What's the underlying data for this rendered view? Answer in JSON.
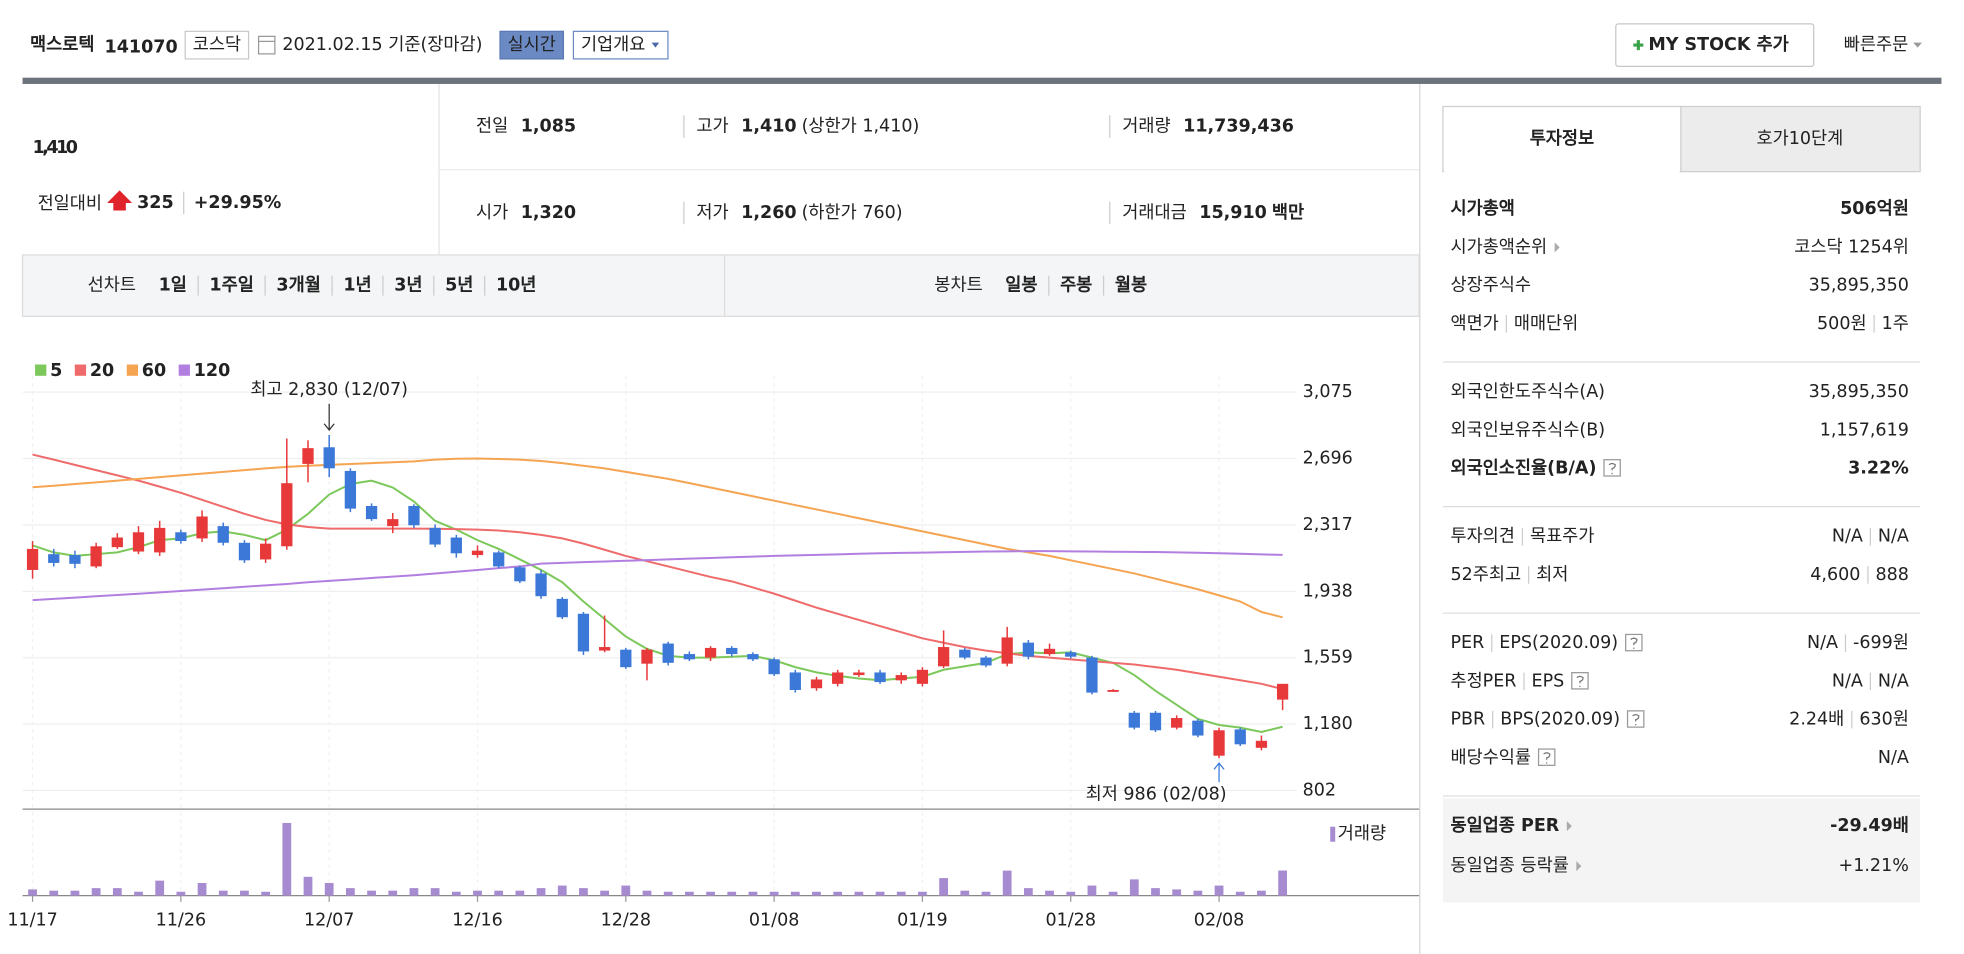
{
  "header": {
    "name": "맥스로텍",
    "code": "141070",
    "market": "코스닥",
    "date": "2021.02.15 기준(장마감)",
    "realtime": "실시간",
    "company_info": "기업개요",
    "my_stock": "MY STOCK 추가",
    "quick_order": "빠른주문"
  },
  "price": {
    "current": "1,410",
    "change_label": "전일대비",
    "change": "325",
    "change_pct": "+29.95%",
    "color": "#e0222b"
  },
  "quote": [
    {
      "label": "전일",
      "value": "1,085"
    },
    {
      "label": "고가",
      "value": "1,410",
      "note": "(상한가 1,410)",
      "color": "#e0222b"
    },
    {
      "label": "거래량",
      "value": "11,739,436"
    },
    {
      "label": "시가",
      "value": "1,320",
      "color": "#e0222b"
    },
    {
      "label": "저가",
      "value": "1,260",
      "note": "(하한가 760)",
      "color": "#e0222b"
    },
    {
      "label": "거래대금",
      "value": "15,910",
      "unit": "백만"
    }
  ],
  "tabs": {
    "line_label": "선차트",
    "line_periods": [
      "1일",
      "1주일",
      "3개월",
      "1년",
      "3년",
      "5년",
      "10년"
    ],
    "candle_label": "봉차트",
    "candle_periods": [
      "일봉",
      "주봉",
      "월봉"
    ],
    "candle_selected": 0
  },
  "chart_data": {
    "type": "candlestick",
    "categories": [
      "11/17",
      null,
      null,
      null,
      null,
      null,
      null,
      "11/26",
      null,
      null,
      null,
      null,
      null,
      null,
      "12/07",
      null,
      null,
      null,
      null,
      null,
      null,
      "12/16",
      null,
      null,
      null,
      null,
      null,
      null,
      "12/28",
      null,
      null,
      null,
      null,
      null,
      null,
      "01/08",
      null,
      null,
      null,
      null,
      null,
      null,
      "01/19",
      null,
      null,
      null,
      null,
      null,
      null,
      "01/28",
      null,
      null,
      null,
      null,
      null,
      null,
      "02/08",
      null,
      null,
      null
    ],
    "open": [
      2060,
      2150,
      2145,
      2080,
      2190,
      2165,
      2160,
      2275,
      2240,
      2310,
      2215,
      2120,
      2195,
      2665,
      2760,
      2625,
      2425,
      2310,
      2425,
      2300,
      2245,
      2145,
      2160,
      2075,
      2040,
      1895,
      1810,
      1600,
      1605,
      1525,
      1640,
      1580,
      1560,
      1615,
      1580,
      1550,
      1475,
      1385,
      1410,
      1460,
      1475,
      1430,
      1410,
      1510,
      1605,
      1560,
      1525,
      1645,
      1580,
      1590,
      1560,
      1370,
      1245,
      1245,
      1160,
      1200,
      1000,
      1150,
      1045,
      1320
    ],
    "high": [
      2225,
      2180,
      2170,
      2215,
      2270,
      2310,
      2340,
      2290,
      2400,
      2330,
      2230,
      2240,
      2810,
      2800,
      2830,
      2640,
      2440,
      2385,
      2435,
      2320,
      2260,
      2200,
      2170,
      2085,
      2060,
      1905,
      1820,
      1800,
      1615,
      1615,
      1650,
      1595,
      1625,
      1625,
      1590,
      1560,
      1490,
      1450,
      1490,
      1490,
      1490,
      1475,
      1505,
      1715,
      1615,
      1570,
      1735,
      1660,
      1640,
      1600,
      1570,
      1380,
      1255,
      1255,
      1230,
      1210,
      1160,
      1160,
      1115,
      1410
    ],
    "low": [
      2010,
      2080,
      2070,
      2070,
      2180,
      2150,
      2140,
      2210,
      2220,
      2200,
      2100,
      2100,
      2175,
      2560,
      2590,
      2390,
      2340,
      2270,
      2300,
      2190,
      2130,
      2130,
      2070,
      1985,
      1895,
      1780,
      1575,
      1590,
      1495,
      1430,
      1515,
      1540,
      1540,
      1565,
      1540,
      1455,
      1360,
      1370,
      1395,
      1450,
      1410,
      1410,
      1395,
      1500,
      1550,
      1505,
      1510,
      1550,
      1570,
      1555,
      1350,
      1365,
      1150,
      1135,
      1150,
      1105,
      986,
      1055,
      1030,
      1260
    ],
    "close": [
      2180,
      2100,
      2095,
      2195,
      2245,
      2275,
      2300,
      2225,
      2365,
      2215,
      2115,
      2210,
      2555,
      2755,
      2640,
      2410,
      2350,
      2350,
      2315,
      2205,
      2155,
      2170,
      2080,
      1995,
      1910,
      1790,
      1595,
      1620,
      1505,
      1605,
      1530,
      1550,
      1615,
      1580,
      1550,
      1465,
      1375,
      1435,
      1475,
      1475,
      1420,
      1460,
      1490,
      1620,
      1560,
      1515,
      1675,
      1565,
      1610,
      1565,
      1360,
      1375,
      1160,
      1145,
      1215,
      1115,
      1145,
      1065,
      1085,
      1410
    ],
    "up_color": "#e8393a",
    "down_color": "#3b78d8",
    "moving_averages": [
      {
        "name": "5",
        "color": "#7cc85a",
        "values": [
          2200,
          2160,
          2140,
          2150,
          2160,
          2190,
          2230,
          2240,
          2270,
          2280,
          2260,
          2230,
          2290,
          2380,
          2490,
          2550,
          2570,
          2530,
          2450,
          2340,
          2290,
          2230,
          2180,
          2120,
          2060,
          1990,
          1880,
          1780,
          1680,
          1610,
          1570,
          1560,
          1560,
          1565,
          1570,
          1545,
          1505,
          1475,
          1455,
          1440,
          1430,
          1440,
          1450,
          1490,
          1510,
          1530,
          1580,
          1590,
          1585,
          1590,
          1560,
          1530,
          1460,
          1370,
          1290,
          1210,
          1175,
          1160,
          1135,
          1165
        ]
      },
      {
        "name": "20",
        "color": "#ef6b6b",
        "values": [
          2718,
          2690,
          2660,
          2630,
          2600,
          2570,
          2535,
          2500,
          2460,
          2420,
          2380,
          2345,
          2320,
          2305,
          2296,
          2296,
          2296,
          2296,
          2296,
          2295,
          2293,
          2290,
          2285,
          2275,
          2260,
          2240,
          2210,
          2175,
          2140,
          2110,
          2080,
          2050,
          2020,
          1995,
          1960,
          1925,
          1885,
          1845,
          1810,
          1775,
          1740,
          1705,
          1670,
          1645,
          1620,
          1600,
          1585,
          1570,
          1560,
          1550,
          1540,
          1530,
          1520,
          1505,
          1490,
          1470,
          1450,
          1430,
          1410,
          1380
        ]
      },
      {
        "name": "60",
        "color": "#f5a452",
        "values": [
          2532,
          2540,
          2550,
          2560,
          2570,
          2580,
          2590,
          2600,
          2610,
          2620,
          2630,
          2640,
          2648,
          2655,
          2660,
          2665,
          2670,
          2675,
          2680,
          2690,
          2695,
          2696,
          2693,
          2690,
          2682,
          2670,
          2655,
          2640,
          2620,
          2600,
          2580,
          2555,
          2530,
          2505,
          2480,
          2455,
          2430,
          2405,
          2380,
          2355,
          2330,
          2305,
          2280,
          2255,
          2230,
          2205,
          2180,
          2160,
          2140,
          2115,
          2090,
          2065,
          2040,
          2010,
          1980,
          1950,
          1915,
          1880,
          1820,
          1790
        ]
      },
      {
        "name": "120",
        "color": "#b27fe0",
        "values": [
          1888,
          1895,
          1902,
          1910,
          1917,
          1924,
          1932,
          1940,
          1948,
          1956,
          1964,
          1972,
          1980,
          1990,
          1998,
          2006,
          2014,
          2022,
          2030,
          2040,
          2050,
          2060,
          2070,
          2080,
          2096,
          2100,
          2104,
          2108,
          2112,
          2116,
          2120,
          2124,
          2128,
          2132,
          2136,
          2140,
          2143,
          2146,
          2149,
          2152,
          2155,
          2157,
          2159,
          2161,
          2163,
          2165,
          2166,
          2167,
          2167,
          2166,
          2165,
          2164,
          2163,
          2162,
          2160,
          2158,
          2155,
          2152,
          2149,
          2146
        ]
      }
    ],
    "volume": {
      "name": "거래량",
      "color": "#a68bd1",
      "values": [
        2900000,
        2300000,
        2300000,
        3500000,
        3500000,
        1800000,
        7000000,
        1800000,
        5900000,
        2300000,
        2300000,
        1800000,
        34000000,
        8800000,
        5900000,
        3500000,
        2300000,
        2300000,
        3500000,
        3500000,
        1800000,
        2300000,
        2300000,
        2300000,
        3500000,
        4700000,
        3500000,
        2300000,
        4700000,
        2300000,
        1800000,
        1800000,
        1800000,
        1800000,
        1800000,
        1800000,
        1800000,
        1800000,
        1800000,
        1800000,
        1800000,
        1800000,
        1800000,
        8200000,
        2300000,
        1800000,
        11700000,
        3500000,
        2300000,
        1800000,
        4700000,
        1800000,
        7600000,
        3500000,
        2900000,
        2300000,
        4700000,
        1800000,
        2300000,
        11739436
      ]
    },
    "ylim": [
      802,
      3075
    ],
    "yticks": [
      802,
      {
        "value": 1180,
        "label": "1,180"
      },
      {
        "value": 1559,
        "label": "1,559"
      },
      {
        "value": 1938,
        "label": "1,938"
      },
      {
        "value": 2317,
        "label": "2,317"
      },
      {
        "value": 2696,
        "label": "2,696"
      },
      {
        "value": 3075,
        "label": "3,075"
      }
    ],
    "high_label": "최고 2,830 (12/07)",
    "low_label": "최저 986 (02/08)",
    "grid": true
  },
  "side": {
    "tabs": [
      "투자정보",
      "호가10단계"
    ],
    "sections": [
      {
        "rows": [
          {
            "label": [
              "시가총액"
            ],
            "value": [
              "506억원"
            ],
            "bold": true
          },
          {
            "label": [
              "시가총액순위"
            ],
            "value": [
              "코스닥 1254위"
            ],
            "icon": "link"
          },
          {
            "label": [
              "상장주식수"
            ],
            "value": [
              "35,895,350"
            ]
          },
          {
            "label": [
              "액면가",
              "매매단위"
            ],
            "value": [
              "500원",
              "1주"
            ]
          }
        ]
      },
      {
        "rows": [
          {
            "label": [
              "외국인한도주식수(A)"
            ],
            "value": [
              "35,895,350"
            ]
          },
          {
            "label": [
              "외국인보유주식수(B)"
            ],
            "value": [
              "1,157,619"
            ]
          },
          {
            "label": [
              "외국인소진율(B/A)"
            ],
            "value": [
              "3.22%"
            ],
            "bold": true,
            "icon": "help"
          }
        ]
      },
      {
        "rows": [
          {
            "label": [
              "투자의견",
              "목표주가"
            ],
            "value": [
              "N/A",
              "N/A"
            ]
          },
          {
            "label": [
              "52주최고",
              "최저"
            ],
            "value": [
              "4,600",
              "888"
            ]
          }
        ]
      },
      {
        "rows": [
          {
            "label": [
              "PER",
              "EPS(2020.09)"
            ],
            "value": [
              "N/A",
              "-699원"
            ],
            "icon": "help"
          },
          {
            "label": [
              "추정PER",
              "EPS"
            ],
            "value": [
              "N/A",
              "N/A"
            ],
            "icon": "help"
          },
          {
            "label": [
              "PBR",
              "BPS(2020.09)"
            ],
            "value": [
              "2.24배",
              "630원"
            ],
            "icon": "help"
          },
          {
            "label": [
              "배당수익률"
            ],
            "value": [
              "N/A"
            ],
            "icon": "help"
          }
        ]
      },
      {
        "shaded": true,
        "rows": [
          {
            "label": [
              "동일업종 PER"
            ],
            "value": [
              "-29.49배"
            ],
            "bold": true,
            "icon": "link"
          },
          {
            "label": [
              "동일업종 등락률"
            ],
            "value": [
              "+1.21%"
            ],
            "icon": "link",
            "color": "#e0222b"
          }
        ]
      }
    ]
  }
}
